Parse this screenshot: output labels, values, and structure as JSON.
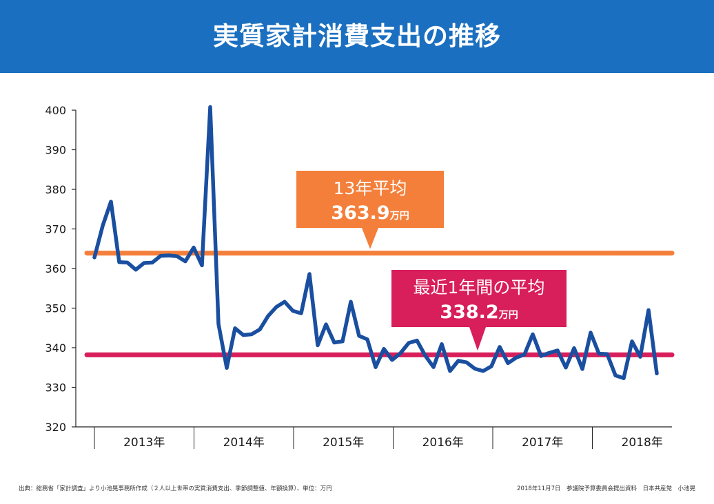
{
  "title": "実質家計消費支出の推移",
  "source_left": "出典：総務省「家計調査」より小池晃事務所作成（２人以上世帯の実質消費支出、季節調整値、年額換算）、単位：万円",
  "source_right": "2018年11月7日　参議院予算委員会提出資料　日本共産党　小池晃",
  "colors": {
    "header": "#1a6fc0",
    "line": "#1a4fa0",
    "avg_2013": "#f47f3a",
    "avg_recent": "#d81e5b"
  },
  "chart_data": {
    "type": "line",
    "title": "",
    "xlabel": "",
    "ylabel": "",
    "ylim": [
      320,
      400
    ],
    "yticks": [
      "320",
      "330",
      "340",
      "350",
      "360",
      "370",
      "380",
      "390",
      "400"
    ],
    "year_labels": [
      "2013年",
      "2014年",
      "2015年",
      "2016年",
      "2017年",
      "2018年"
    ],
    "grid": false,
    "series": [
      {
        "values": [
          362.8,
          370.8,
          376.9,
          361.6,
          361.5,
          359.7,
          361.4,
          361.5,
          363.2,
          363.3,
          363.1,
          361.8,
          365.3,
          360.8,
          400.8,
          346.0,
          334.9,
          344.9,
          343.2,
          343.4,
          344.6,
          348.0,
          350.3,
          351.6,
          349.3,
          348.7,
          358.6,
          340.6,
          345.9,
          341.3,
          341.6,
          351.6,
          343.0,
          342.1,
          335.1,
          339.7,
          336.9,
          338.6,
          341.2,
          341.8,
          338.0,
          335.1,
          340.9,
          334.1,
          336.7,
          336.3,
          334.7,
          334.1,
          335.3,
          340.2,
          336.1,
          337.5,
          338.3,
          343.4,
          337.9,
          338.7,
          339.3,
          335.0,
          339.9,
          334.6,
          343.8,
          338.5,
          338.4,
          333.0,
          332.3,
          341.6,
          337.7,
          349.5,
          333.5
        ]
      }
    ],
    "averages": [
      {
        "label": "13年平均",
        "value": 363.9,
        "value_text": "363.9",
        "unit": "万円"
      },
      {
        "label": "最近1年間の平均",
        "value": 338.2,
        "value_text": "338.2",
        "unit": "万円"
      }
    ]
  }
}
